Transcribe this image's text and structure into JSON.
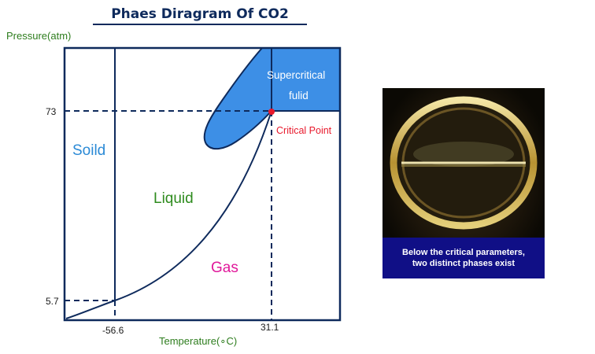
{
  "title": "Phaes Diragram Of CO2",
  "y_axis_label": "Pressure(atm)",
  "x_axis_label": "Temperature(∘C)",
  "ticks": {
    "p_triple": "5.7",
    "p_critical": "73",
    "t_triple": "-56.6",
    "t_critical": "31.1"
  },
  "regions": {
    "solid": "Soild",
    "liquid": "Liquid",
    "gas": "Gas",
    "supercritical_line1": "Supercritical",
    "supercritical_line2": "fulid"
  },
  "critical_point_label": "Critical Point",
  "photo_caption": {
    "line1": "Below the critical parameters,",
    "line2": "two distinct phases exist"
  },
  "colors": {
    "frame": "#0e2a5c",
    "fill": "#3d8fe6",
    "solid_text": "#2b8ad6",
    "liquid_text": "#2e8b1e",
    "gas_text": "#e0189a",
    "critical": "#e8192c",
    "axis_label": "#2e7d1e",
    "caption_bg": "#100f86"
  }
}
